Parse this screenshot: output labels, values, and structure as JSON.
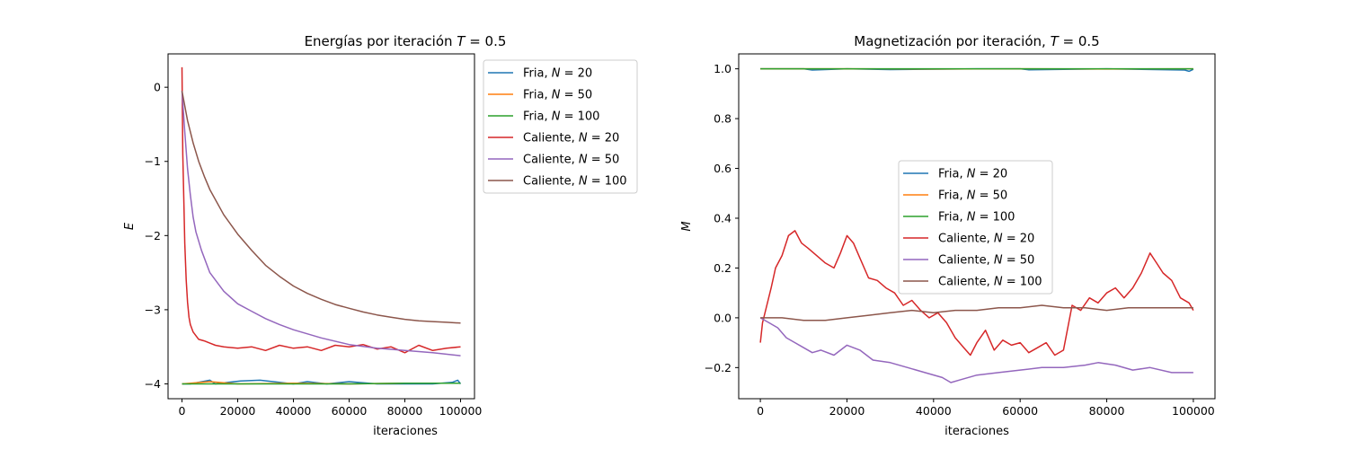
{
  "chart_data": [
    {
      "type": "line",
      "title": "Energías por iteración T = 0.5",
      "title_parts": [
        "Energías por iteración ",
        "T",
        " = 0.5"
      ],
      "xlabel": "iteraciones",
      "ylabel": "E",
      "xlim": [
        -5000,
        105000
      ],
      "ylim": [
        -4.2,
        0.45
      ],
      "xticks": [
        0,
        20000,
        40000,
        60000,
        80000,
        100000
      ],
      "yticks": [
        0,
        -1,
        -2,
        -3,
        -4
      ],
      "ytick_labels": [
        "0",
        "−1",
        "−2",
        "−3",
        "−4"
      ],
      "legend_position": "upper right",
      "series": [
        {
          "name": "Fria, N = 20",
          "color": "#1f77b4",
          "x": [
            0,
            3000,
            10000,
            12000,
            21000,
            28000,
            40000,
            45000,
            52000,
            60000,
            70000,
            80000,
            90000,
            97000,
            99000,
            100000
          ],
          "y": [
            -4.0,
            -4.0,
            -3.95,
            -4.0,
            -3.96,
            -3.95,
            -4.0,
            -3.97,
            -4.0,
            -3.97,
            -4.0,
            -4.0,
            -4.0,
            -3.98,
            -3.95,
            -4.0
          ]
        },
        {
          "name": "Fria, N = 50",
          "color": "#ff7f0e",
          "x": [
            0,
            10000,
            20000,
            40000,
            60000,
            80000,
            100000
          ],
          "y": [
            -4.0,
            -3.97,
            -4.0,
            -3.99,
            -4.0,
            -3.99,
            -3.99
          ]
        },
        {
          "name": "Fria, N = 100",
          "color": "#2ca02c",
          "x": [
            0,
            20000,
            40000,
            60000,
            80000,
            100000
          ],
          "y": [
            -4.0,
            -4.0,
            -4.0,
            -4.0,
            -3.99,
            -3.99
          ]
        },
        {
          "name": "Caliente, N = 20",
          "color": "#d62728",
          "x": [
            0,
            300,
            700,
            1000,
            1500,
            2000,
            2500,
            3000,
            4000,
            5000,
            6000,
            8000,
            10000,
            12000,
            15000,
            20000,
            25000,
            30000,
            35000,
            40000,
            45000,
            50000,
            55000,
            60000,
            65000,
            70000,
            75000,
            80000,
            85000,
            90000,
            95000,
            100000
          ],
          "y": [
            0.27,
            -0.9,
            -1.6,
            -2.1,
            -2.6,
            -2.9,
            -3.1,
            -3.2,
            -3.3,
            -3.35,
            -3.4,
            -3.42,
            -3.45,
            -3.48,
            -3.5,
            -3.52,
            -3.5,
            -3.55,
            -3.48,
            -3.52,
            -3.5,
            -3.55,
            -3.48,
            -3.5,
            -3.47,
            -3.53,
            -3.5,
            -3.58,
            -3.48,
            -3.55,
            -3.52,
            -3.5
          ]
        },
        {
          "name": "Caliente, N = 50",
          "color": "#9467bd",
          "x": [
            0,
            1000,
            2000,
            3000,
            4000,
            5000,
            7000,
            10000,
            15000,
            20000,
            25000,
            30000,
            35000,
            40000,
            50000,
            60000,
            70000,
            80000,
            90000,
            100000
          ],
          "y": [
            -0.05,
            -0.6,
            -1.1,
            -1.45,
            -1.75,
            -1.95,
            -2.2,
            -2.5,
            -2.75,
            -2.92,
            -3.02,
            -3.12,
            -3.2,
            -3.27,
            -3.38,
            -3.47,
            -3.52,
            -3.55,
            -3.58,
            -3.62
          ]
        },
        {
          "name": "Caliente, N = 100",
          "color": "#8c564b",
          "x": [
            0,
            2000,
            4000,
            6000,
            8000,
            10000,
            15000,
            20000,
            25000,
            30000,
            35000,
            40000,
            45000,
            50000,
            55000,
            60000,
            65000,
            70000,
            75000,
            80000,
            85000,
            90000,
            95000,
            100000
          ],
          "y": [
            -0.05,
            -0.45,
            -0.75,
            -1.0,
            -1.2,
            -1.38,
            -1.72,
            -1.98,
            -2.2,
            -2.4,
            -2.55,
            -2.68,
            -2.78,
            -2.86,
            -2.93,
            -2.98,
            -3.03,
            -3.07,
            -3.1,
            -3.13,
            -3.15,
            -3.16,
            -3.17,
            -3.18
          ]
        }
      ]
    },
    {
      "type": "line",
      "title": "Magnetización por iteración, T = 0.5",
      "title_parts": [
        "Magnetización por iteración, ",
        "T",
        " = 0.5"
      ],
      "xlabel": "iteraciones",
      "ylabel": "M",
      "xlim": [
        -5000,
        105000
      ],
      "ylim": [
        -0.325,
        1.06
      ],
      "xticks": [
        0,
        20000,
        40000,
        60000,
        80000,
        100000
      ],
      "yticks": [
        1.0,
        0.8,
        0.6,
        0.4,
        0.2,
        0.0,
        -0.2
      ],
      "ytick_labels": [
        "1.0",
        "0.8",
        "0.6",
        "0.4",
        "0.2",
        "0.0",
        "−0.2"
      ],
      "legend_position": "center",
      "series": [
        {
          "name": "Fria, N = 20",
          "color": "#1f77b4",
          "x": [
            0,
            10000,
            12000,
            20000,
            30000,
            50000,
            60000,
            62000,
            80000,
            98000,
            99000,
            100000
          ],
          "y": [
            1.0,
            1.0,
            0.995,
            1.0,
            0.997,
            1.0,
            1.0,
            0.996,
            1.0,
            0.995,
            0.99,
            0.998
          ]
        },
        {
          "name": "Fria, N = 50",
          "color": "#ff7f0e",
          "x": [
            0,
            20000,
            40000,
            60000,
            80000,
            100000
          ],
          "y": [
            1.0,
            1.0,
            0.999,
            1.0,
            0.999,
            1.0
          ]
        },
        {
          "name": "Fria, N = 100",
          "color": "#2ca02c",
          "x": [
            0,
            20000,
            40000,
            60000,
            80000,
            100000
          ],
          "y": [
            1.0,
            1.0,
            1.0,
            1.0,
            1.0,
            1.0
          ]
        },
        {
          "name": "Caliente, N = 20",
          "color": "#d62728",
          "x": [
            0,
            500,
            1500,
            2500,
            3500,
            5000,
            6500,
            8000,
            9500,
            11000,
            13000,
            15000,
            17000,
            18500,
            20000,
            21500,
            23000,
            25000,
            27000,
            29000,
            31000,
            33000,
            35000,
            37000,
            39000,
            41000,
            43000,
            45000,
            47000,
            48500,
            50000,
            52000,
            54000,
            56000,
            58000,
            60000,
            62000,
            64000,
            66000,
            68000,
            70000,
            72000,
            74000,
            76000,
            78000,
            80000,
            82000,
            84000,
            86000,
            88000,
            90000,
            91500,
            93000,
            95000,
            97000,
            99000,
            100000
          ],
          "y": [
            -0.1,
            -0.02,
            0.05,
            0.12,
            0.2,
            0.25,
            0.33,
            0.35,
            0.3,
            0.28,
            0.25,
            0.22,
            0.2,
            0.26,
            0.33,
            0.3,
            0.24,
            0.16,
            0.15,
            0.12,
            0.1,
            0.05,
            0.07,
            0.03,
            0.0,
            0.02,
            -0.02,
            -0.08,
            -0.12,
            -0.15,
            -0.1,
            -0.05,
            -0.13,
            -0.09,
            -0.11,
            -0.1,
            -0.14,
            -0.12,
            -0.1,
            -0.15,
            -0.13,
            0.05,
            0.03,
            0.08,
            0.06,
            0.1,
            0.12,
            0.08,
            0.12,
            0.18,
            0.26,
            0.22,
            0.18,
            0.15,
            0.08,
            0.06,
            0.03
          ]
        },
        {
          "name": "Caliente, N = 50",
          "color": "#9467bd",
          "x": [
            0,
            2000,
            4000,
            6000,
            8000,
            10000,
            12000,
            14000,
            17000,
            20000,
            23000,
            26000,
            30000,
            34000,
            38000,
            42000,
            44000,
            46000,
            50000,
            55000,
            60000,
            65000,
            70000,
            75000,
            78000,
            82000,
            86000,
            90000,
            95000,
            100000
          ],
          "y": [
            0.0,
            -0.02,
            -0.04,
            -0.08,
            -0.1,
            -0.12,
            -0.14,
            -0.13,
            -0.15,
            -0.11,
            -0.13,
            -0.17,
            -0.18,
            -0.2,
            -0.22,
            -0.24,
            -0.26,
            -0.25,
            -0.23,
            -0.22,
            -0.21,
            -0.2,
            -0.2,
            -0.19,
            -0.18,
            -0.19,
            -0.21,
            -0.2,
            -0.22,
            -0.22
          ]
        },
        {
          "name": "Caliente, N = 100",
          "color": "#8c564b",
          "x": [
            0,
            5000,
            10000,
            15000,
            20000,
            25000,
            30000,
            35000,
            40000,
            45000,
            50000,
            55000,
            60000,
            65000,
            70000,
            75000,
            80000,
            85000,
            90000,
            95000,
            100000
          ],
          "y": [
            0.0,
            0.0,
            -0.01,
            -0.01,
            0.0,
            0.01,
            0.02,
            0.03,
            0.02,
            0.03,
            0.03,
            0.04,
            0.04,
            0.05,
            0.04,
            0.04,
            0.03,
            0.04,
            0.04,
            0.04,
            0.04
          ]
        }
      ]
    }
  ]
}
